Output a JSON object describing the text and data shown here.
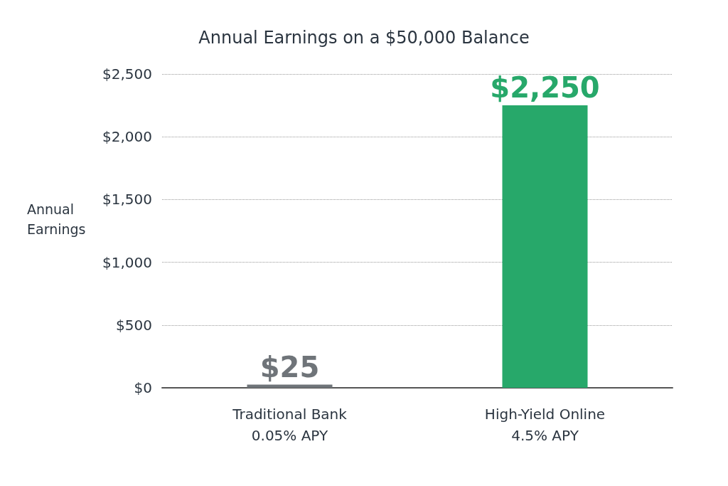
{
  "chart_data": {
    "type": "bar",
    "title": "Annual Earnings on a $50,000 Balance",
    "ylabel": "Annual Earnings",
    "categories": [
      "Traditional Bank\n0.05% APY",
      "High-Yield Online\n4.5% APY"
    ],
    "values": [
      25,
      2250
    ],
    "colors": [
      "#6f7479",
      "#27a86a"
    ],
    "value_labels": [
      "$25",
      "$2,250"
    ],
    "ylim": [
      0,
      2500
    ],
    "yticks": [
      {
        "value": 0,
        "label": "$0"
      },
      {
        "value": 500,
        "label": "$500"
      },
      {
        "value": 1000,
        "label": "$1,000"
      },
      {
        "value": 1500,
        "label": "$1,500"
      },
      {
        "value": 2000,
        "label": "$2,000"
      },
      {
        "value": 2500,
        "label": "$2,500"
      }
    ],
    "grid": "y"
  }
}
